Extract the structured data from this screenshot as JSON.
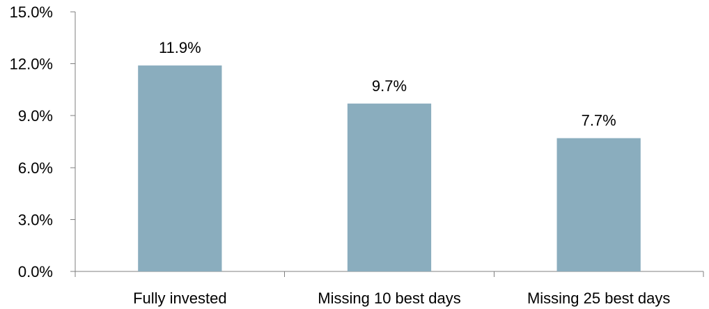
{
  "chart_data": {
    "type": "bar",
    "categories": [
      "Fully invested",
      "Missing 10 best days",
      "Missing 25 best days"
    ],
    "values": [
      11.9,
      9.7,
      7.7
    ],
    "data_labels": [
      "11.9%",
      "9.7%",
      "7.7%"
    ],
    "title": "",
    "xlabel": "",
    "ylabel": "",
    "ylim": [
      0,
      15
    ],
    "yticks": [
      0,
      3,
      6,
      9,
      12,
      15
    ],
    "ytick_labels": [
      "0.0%",
      "3.0%",
      "6.0%",
      "9.0%",
      "12.0%",
      "15.0%"
    ],
    "grid": false,
    "legend": "none",
    "bar_color": "#8aadbe"
  }
}
